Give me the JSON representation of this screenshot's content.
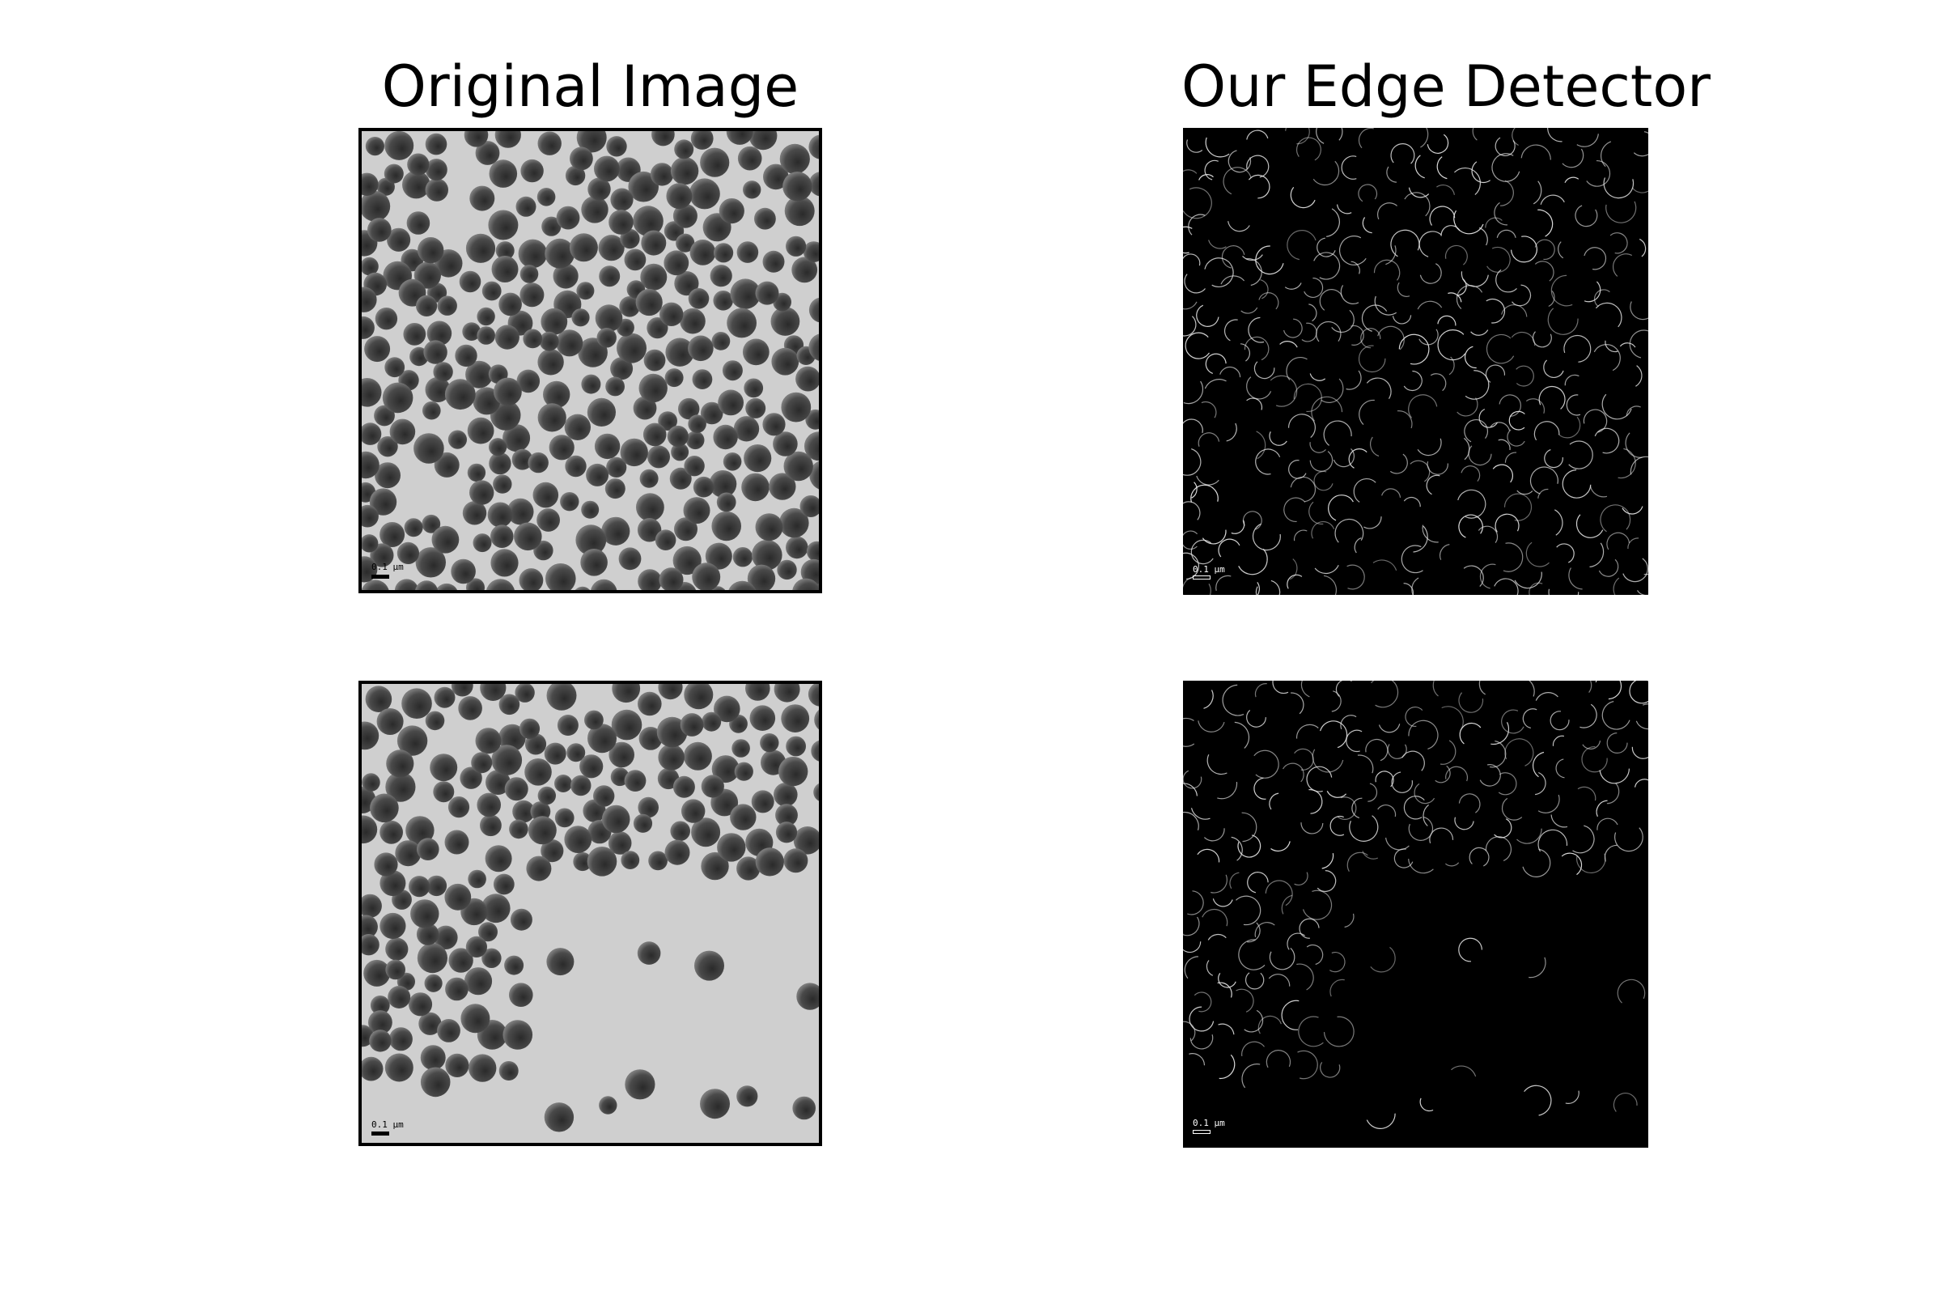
{
  "columns": {
    "left_title": "Original Image",
    "right_title": "Our Edge Detector"
  },
  "panels": {
    "scale_label": "0.1 µm"
  },
  "colors": {
    "background": "#ffffff",
    "micrograph_background": "#cfcfcf",
    "particle_core": "#2a2a2a",
    "particle_rim": "#7a7a7a",
    "edge_background": "#000000",
    "edge_line": "#e6e6e6"
  }
}
